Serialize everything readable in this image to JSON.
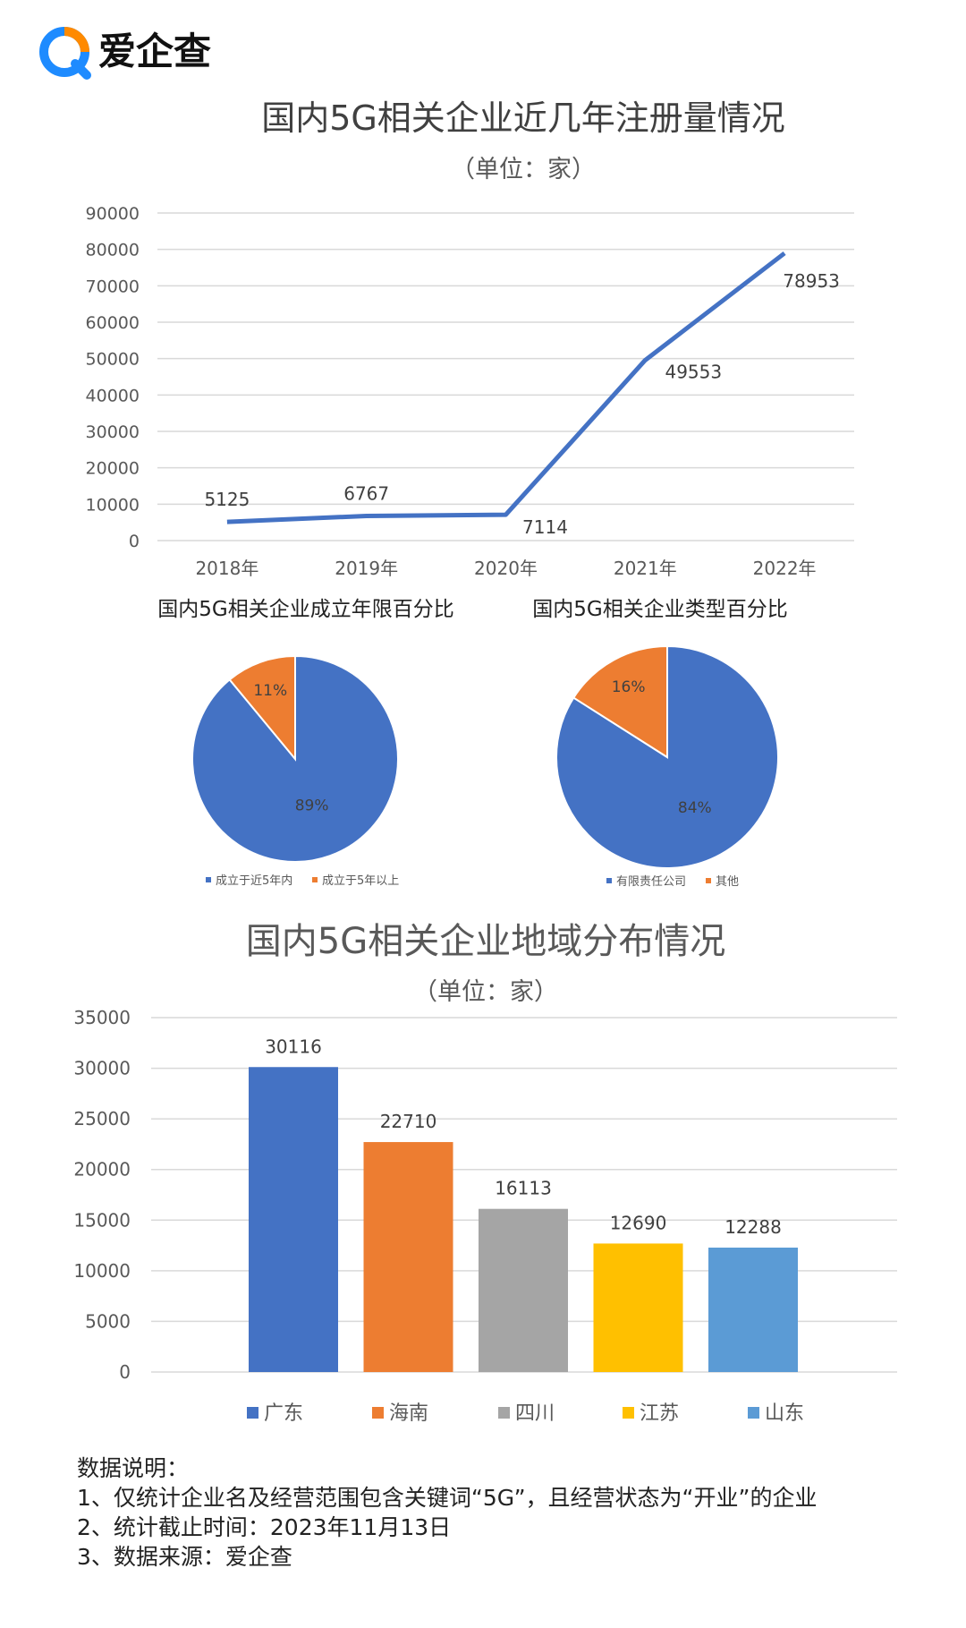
{
  "brand": {
    "name": "爱企查",
    "logo_icon": "magnifier-logo-icon",
    "colors": {
      "blue": "#1e8bff",
      "orange": "#ff8a00",
      "text": "#111111"
    }
  },
  "chart_data": [
    {
      "type": "line",
      "title": "国内5G相关企业近几年注册量情况",
      "subtitle": "（单位：家）",
      "categories": [
        "2018年",
        "2019年",
        "2020年",
        "2021年",
        "2022年"
      ],
      "series": [
        {
          "values": [
            5125,
            6767,
            7114,
            49553,
            78953
          ],
          "color": "#4472c4"
        }
      ],
      "data_labels": [
        "5125",
        "6767",
        "7114",
        "49553",
        "78953"
      ],
      "ylim": [
        0,
        90000
      ],
      "yticks": [
        "0",
        "10000",
        "20000",
        "30000",
        "40000",
        "50000",
        "60000",
        "70000",
        "80000",
        "90000"
      ],
      "grid": true
    },
    {
      "type": "pie",
      "title": "国内5G相关企业成立年限百分比",
      "slices": [
        {
          "label": "成立于近5年内",
          "value": 89,
          "text": "89%",
          "color": "#4472c4"
        },
        {
          "label": "成立于5年以上",
          "value": 11,
          "text": "11%",
          "color": "#ed7d31"
        }
      ],
      "legend": "bottom"
    },
    {
      "type": "pie",
      "title": "国内5G相关企业类型百分比",
      "slices": [
        {
          "label": "有限责任公司",
          "value": 84,
          "text": "84%",
          "color": "#4472c4"
        },
        {
          "label": "其他",
          "value": 16,
          "text": "16%",
          "color": "#ed7d31"
        }
      ],
      "legend": "bottom"
    },
    {
      "type": "bar",
      "title": "国内5G相关企业地域分布情况",
      "subtitle": "（单位：家）",
      "categories": [
        "广东",
        "海南",
        "四川",
        "江苏",
        "山东"
      ],
      "values": [
        30116,
        22710,
        16113,
        12690,
        12288
      ],
      "data_labels": [
        "30116",
        "22710",
        "16113",
        "12690",
        "12288"
      ],
      "colors": [
        "#4472c4",
        "#ed7d31",
        "#a5a5a5",
        "#ffc000",
        "#5b9bd5"
      ],
      "ylim": [
        0,
        35000
      ],
      "yticks": [
        "0",
        "5000",
        "10000",
        "15000",
        "20000",
        "25000",
        "30000",
        "35000"
      ],
      "grid": true,
      "legend": "bottom"
    }
  ],
  "notes": {
    "heading": "数据说明：",
    "lines": [
      "1、仅统计企业名及经营范围包含关键词“5G”，且经营状态为“开业”的企业",
      "2、统计截止时间：2023年11月13日",
      "3、数据来源：爱企查"
    ]
  }
}
